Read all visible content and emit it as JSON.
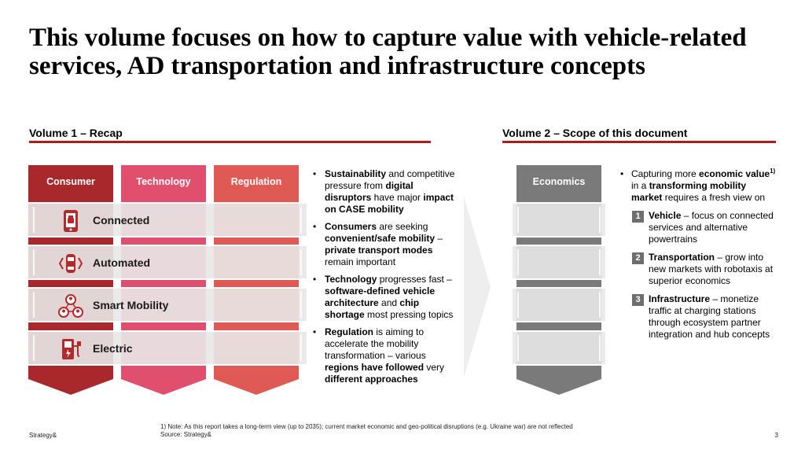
{
  "title": "This volume focuses on how to capture value with vehicle-related services, AD transportation and infrastructure concepts",
  "volume1": {
    "heading": "Volume 1 – Recap",
    "columns": [
      {
        "label": "Consumer",
        "color": "#a8282b"
      },
      {
        "label": "Technology",
        "color": "#e0506e"
      },
      {
        "label": "Regulation",
        "color": "#e05a55"
      }
    ],
    "rows": [
      {
        "label": "Connected",
        "icon": "phone-car-icon"
      },
      {
        "label": "Automated",
        "icon": "autonomous-car-icon"
      },
      {
        "label": "Smart Mobility",
        "icon": "people-network-icon"
      },
      {
        "label": "Electric",
        "icon": "charging-station-icon"
      }
    ],
    "bullets": [
      [
        {
          "t": "Sustainability",
          "b": true
        },
        {
          "t": " and competitive pressure from "
        },
        {
          "t": "digital disruptors",
          "b": true
        },
        {
          "t": " have major "
        },
        {
          "t": "impact on CASE mobility",
          "b": true
        }
      ],
      [
        {
          "t": "Consumers",
          "b": true
        },
        {
          "t": " are seeking "
        },
        {
          "t": "convenient/safe mobility",
          "b": true
        },
        {
          "t": " – "
        },
        {
          "t": "private transport modes",
          "b": true
        },
        {
          "t": " remain important"
        }
      ],
      [
        {
          "t": "Technology",
          "b": true
        },
        {
          "t": " progresses fast – "
        },
        {
          "t": "software-defined vehicle architecture",
          "b": true
        },
        {
          "t": " and "
        },
        {
          "t": "chip shortage",
          "b": true
        },
        {
          "t": " most pressing topics"
        }
      ],
      [
        {
          "t": "Regulation",
          "b": true
        },
        {
          "t": " is aiming to accelerate the mobility transformation – various "
        },
        {
          "t": "regions have followed",
          "b": true
        },
        {
          "t": " very "
        },
        {
          "t": "different approaches",
          "b": true
        }
      ]
    ]
  },
  "volume2": {
    "heading": "Volume 2 – Scope of this document",
    "column": {
      "label": "Economics",
      "color": "#7a7a7a"
    },
    "intro": [
      {
        "t": "Capturing more "
      },
      {
        "t": "economic value",
        "b": true
      },
      {
        "t": "1)",
        "sup": true
      },
      {
        "t": " in a "
      },
      {
        "t": "transforming mobility market",
        "b": true
      },
      {
        "t": " requires a fresh view on"
      }
    ],
    "items": [
      {
        "num": "1",
        "parts": [
          {
            "t": "Vehicle",
            "b": true
          },
          {
            "t": " – focus on connected services and alternative powertrains"
          }
        ]
      },
      {
        "num": "2",
        "parts": [
          {
            "t": "Transportation",
            "b": true
          },
          {
            "t": " – grow into new markets with robotaxis at superior economics"
          }
        ]
      },
      {
        "num": "3",
        "parts": [
          {
            "t": "Infrastructure",
            "b": true
          },
          {
            "t": " – monetize traffic at charging stations through ecosystem partner integration and hub concepts"
          }
        ]
      }
    ]
  },
  "footnote": {
    "note": "1) Note: As this report takes a long-term view (up to 2035); current market economic and geo-political disruptions (e.g. Ukraine war) are not reflected",
    "source": "Source: Strategy&"
  },
  "brand": "Strategy&",
  "page_number": "3",
  "colors": {
    "accent_line": "#ad1b1b",
    "band": "#e8e8e8",
    "chevron": "#eeeeee",
    "number_box": "#6e6e6e"
  }
}
